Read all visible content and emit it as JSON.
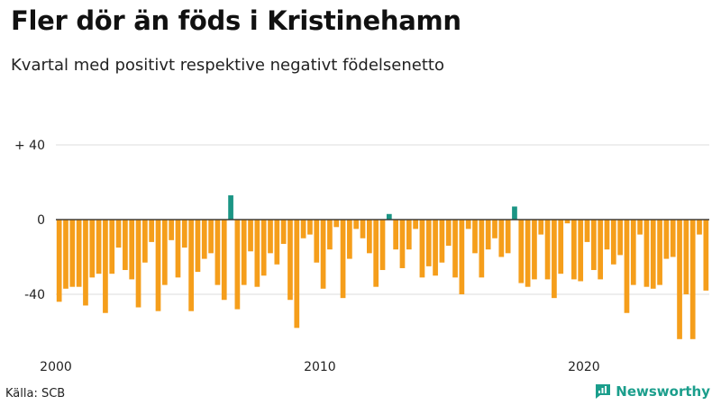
{
  "title": "Fler dör än föds i Kristinehamn",
  "subtitle": "Kvartal med positivt respektive negativt födelsenetto",
  "source": "Källa: SCB",
  "brand": {
    "name": "Newsworthy",
    "icon": "newsworthy-chart-icon",
    "color": "#1b9e8c"
  },
  "colors": {
    "positive": "#1b9585",
    "negative": "#f59e1b",
    "grid": "#dddddd",
    "zero_line": "#333333"
  },
  "chart_data": {
    "type": "bar",
    "title": "Fler dör än föds i Kristinehamn",
    "subtitle": "Kvartal med positivt respektive negativt födelsenetto",
    "xlabel": "",
    "ylabel": "",
    "ylim": [
      -65,
      40
    ],
    "y_ticks": [
      {
        "value": 40,
        "label": "+ 40"
      },
      {
        "value": 0,
        "label": "0"
      },
      {
        "value": -40,
        "label": "-40"
      }
    ],
    "x_ticks": [
      "2000",
      "2010",
      "2020"
    ],
    "start_year": 2000,
    "values": [
      -44,
      -37,
      -36,
      -36,
      -46,
      -31,
      -29,
      -50,
      -29,
      -15,
      -27,
      -32,
      -47,
      -23,
      -12,
      -49,
      -35,
      -11,
      -31,
      -15,
      -49,
      -28,
      -21,
      -18,
      -35,
      -43,
      13,
      -48,
      -35,
      -17,
      -36,
      -30,
      -18,
      -24,
      -13,
      -43,
      -58,
      -10,
      -8,
      -23,
      -37,
      -16,
      -4,
      -42,
      -21,
      -5,
      -10,
      -18,
      -36,
      -27,
      3,
      -16,
      -26,
      -16,
      -5,
      -31,
      -25,
      -30,
      -23,
      -14,
      -31,
      -40,
      -5,
      -18,
      -31,
      -16,
      -10,
      -20,
      -18,
      7,
      -34,
      -36,
      -32,
      -8,
      -32,
      -42,
      -29,
      -2,
      -32,
      -33,
      -12,
      -27,
      -32,
      -16,
      -24,
      -19,
      -50,
      -35,
      -8,
      -36,
      -37,
      -35,
      -21,
      -20,
      -64,
      -40,
      -64,
      -8,
      -38
    ],
    "grid": true,
    "legend": "none"
  }
}
